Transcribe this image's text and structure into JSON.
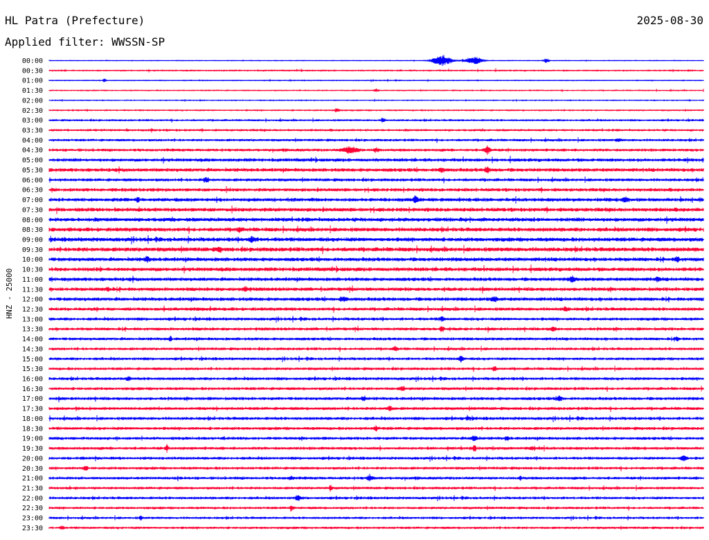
{
  "header": {
    "station": "HL Patra (Prefecture)",
    "date": "2025-08-30",
    "filter": "Applied filter: WWSSN-SP"
  },
  "colors": {
    "even": "#0000ff",
    "odd": "#ff0033"
  },
  "chart_data": {
    "type": "line",
    "title": "HL Patra (Prefecture)",
    "ylabel": "HNZ - 25000",
    "grid": false,
    "categories": [
      "00:00",
      "00:30",
      "01:00",
      "01:30",
      "02:00",
      "02:30",
      "03:00",
      "03:30",
      "04:00",
      "04:30",
      "05:00",
      "05:30",
      "06:00",
      "06:30",
      "07:00",
      "07:30",
      "08:00",
      "08:30",
      "09:00",
      "09:30",
      "10:00",
      "10:30",
      "11:00",
      "11:30",
      "12:00",
      "12:30",
      "13:00",
      "13:30",
      "14:00",
      "14:30",
      "15:00",
      "15:30",
      "16:00",
      "16:30",
      "17:00",
      "17:30",
      "18:00",
      "18:30",
      "19:00",
      "19:30",
      "20:00",
      "20:30",
      "21:00",
      "21:30",
      "22:00",
      "22:30",
      "23:00",
      "23:30"
    ],
    "noise": [
      1,
      1.5,
      1.2,
      1.3,
      1.2,
      1.5,
      1.8,
      2,
      2.2,
      2.4,
      2.8,
      3,
      2.6,
      2.8,
      3,
      3.2,
      3.3,
      3.3,
      3.4,
      3.5,
      3.2,
      3.2,
      3,
      3,
      3,
      2.8,
      2.6,
      2.6,
      2.5,
      2.4,
      2.4,
      2.4,
      2.5,
      2.5,
      2.6,
      2.6,
      2.6,
      2.6,
      2.5,
      2.5,
      2.4,
      2.4,
      2.4,
      2.3,
      2.3,
      2.2,
      2.1,
      2.1
    ],
    "events": [
      [
        [
          0.6,
          8,
          14
        ],
        [
          0.65,
          6,
          12
        ],
        [
          0.76,
          3,
          4
        ]
      ],
      [],
      [
        [
          0.085,
          3,
          2
        ]
      ],
      [
        [
          0.5,
          2,
          3
        ]
      ],
      [],
      [
        [
          0.44,
          3,
          4
        ]
      ],
      [
        [
          0.51,
          3,
          3
        ]
      ],
      [],
      [
        [
          0.87,
          2,
          3
        ]
      ],
      [
        [
          0.46,
          5,
          10
        ],
        [
          0.5,
          3,
          4
        ],
        [
          0.67,
          6,
          4
        ]
      ],
      [],
      [
        [
          0.67,
          5,
          3
        ],
        [
          0.6,
          3,
          4
        ]
      ],
      [
        [
          0.24,
          3,
          4
        ]
      ],
      [],
      [
        [
          0.135,
          4,
          2
        ],
        [
          0.56,
          5,
          3
        ],
        [
          0.88,
          3,
          5
        ]
      ],
      [],
      [],
      [
        [
          0.29,
          3,
          3
        ]
      ],
      [
        [
          0.31,
          4,
          4
        ]
      ],
      [
        [
          0.26,
          3,
          3
        ]
      ],
      [
        [
          0.15,
          3,
          4
        ],
        [
          0.96,
          3,
          3
        ]
      ],
      [],
      [
        [
          0.8,
          4,
          4
        ],
        [
          0.93,
          3,
          3
        ]
      ],
      [
        [
          0.3,
          3,
          4
        ],
        [
          0.09,
          3,
          3
        ]
      ],
      [
        [
          0.45,
          3,
          5
        ],
        [
          0.68,
          3,
          5
        ]
      ],
      [
        [
          0.79,
          3,
          3
        ]
      ],
      [
        [
          0.6,
          3,
          3
        ]
      ],
      [
        [
          0.6,
          4,
          3
        ],
        [
          0.77,
          3,
          3
        ]
      ],
      [
        [
          0.185,
          4,
          2
        ],
        [
          0.96,
          4,
          2
        ]
      ],
      [
        [
          0.53,
          3,
          3
        ]
      ],
      [
        [
          0.63,
          5,
          3
        ]
      ],
      [
        [
          0.68,
          3,
          3
        ]
      ],
      [
        [
          0.12,
          3,
          3
        ]
      ],
      [
        [
          0.54,
          3,
          3
        ]
      ],
      [
        [
          0.48,
          3,
          3
        ],
        [
          0.78,
          4,
          3
        ]
      ],
      [
        [
          0.52,
          3,
          4
        ]
      ],
      [
        [
          0.64,
          3,
          3
        ]
      ],
      [
        [
          0.5,
          3,
          3
        ]
      ],
      [
        [
          0.65,
          4,
          4
        ],
        [
          0.7,
          3,
          3
        ]
      ],
      [
        [
          0.18,
          4,
          2
        ],
        [
          0.65,
          5,
          2
        ],
        [
          0.74,
          3,
          3
        ]
      ],
      [
        [
          0.97,
          4,
          4
        ]
      ],
      [
        [
          0.055,
          3,
          3
        ]
      ],
      [
        [
          0.37,
          3,
          3
        ],
        [
          0.49,
          4,
          4
        ],
        [
          0.72,
          3,
          2
        ]
      ],
      [
        [
          0.43,
          4,
          2
        ]
      ],
      [
        [
          0.38,
          4,
          3
        ]
      ],
      [
        [
          0.37,
          5,
          2
        ]
      ],
      [
        [
          0.14,
          3,
          2
        ]
      ],
      [
        [
          0.02,
          3,
          2
        ]
      ]
    ]
  }
}
